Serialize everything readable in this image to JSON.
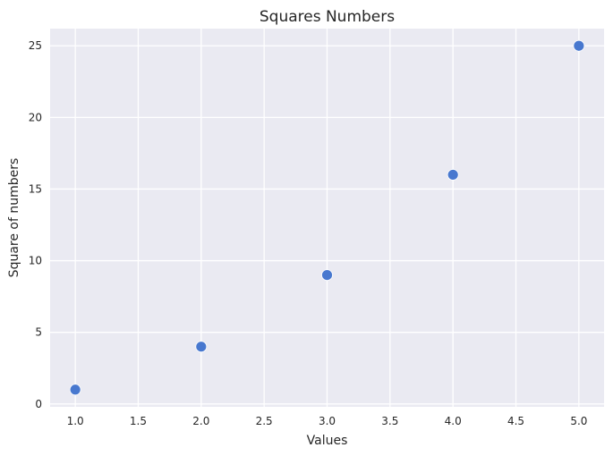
{
  "chart_data": {
    "type": "scatter",
    "title": "Squares Numbers",
    "xlabel": "Values",
    "ylabel": "Square of numbers",
    "x": [
      1,
      2,
      3,
      4,
      5
    ],
    "y": [
      1,
      4,
      9,
      16,
      25
    ],
    "xlim": [
      0.8,
      5.2
    ],
    "ylim": [
      -0.2,
      26.2
    ],
    "xticks": [
      "1.0",
      "1.5",
      "2.0",
      "2.5",
      "3.0",
      "3.5",
      "4.0",
      "4.5",
      "5.0"
    ],
    "yticks": [
      "0",
      "5",
      "10",
      "15",
      "20",
      "25"
    ],
    "grid": true,
    "colors": {
      "background": "#eaeaf2",
      "grid": "#ffffff",
      "marker": "#4878cf"
    }
  }
}
